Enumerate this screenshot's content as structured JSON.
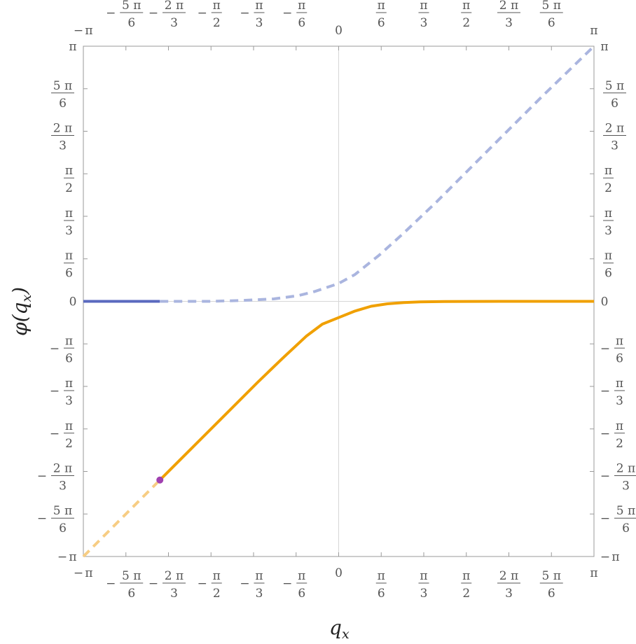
{
  "chart_data": {
    "type": "line",
    "xlabel": "q",
    "xlabel_sub": "x",
    "ylabel_prefix": "φ(q",
    "ylabel_sub": "x",
    "ylabel_suffix": ")",
    "xlim": [
      -3.14159,
      3.14159
    ],
    "ylim": [
      -3.14159,
      3.14159
    ],
    "ticks": [
      {
        "value": -3.14159,
        "num": "π",
        "den": "",
        "neg": true
      },
      {
        "value": -2.61799,
        "num": "5 π",
        "den": "6",
        "neg": true
      },
      {
        "value": -2.0944,
        "num": "2 π",
        "den": "3",
        "neg": true
      },
      {
        "value": -1.5708,
        "num": "π",
        "den": "2",
        "neg": true
      },
      {
        "value": -1.0472,
        "num": "π",
        "den": "3",
        "neg": true
      },
      {
        "value": -0.5236,
        "num": "π",
        "den": "6",
        "neg": true
      },
      {
        "value": 0,
        "num": "0",
        "den": "",
        "neg": false
      },
      {
        "value": 0.5236,
        "num": "π",
        "den": "6",
        "neg": false
      },
      {
        "value": 1.0472,
        "num": "π",
        "den": "3",
        "neg": false
      },
      {
        "value": 1.5708,
        "num": "π",
        "den": "2",
        "neg": false
      },
      {
        "value": 2.0944,
        "num": "2 π",
        "den": "3",
        "neg": false
      },
      {
        "value": 2.61799,
        "num": "5 π",
        "den": "6",
        "neg": false
      },
      {
        "value": 3.14159,
        "num": "π",
        "den": "",
        "neg": false
      }
    ],
    "series": [
      {
        "style": "solid",
        "color": "#5a6abf",
        "x": [
          -3.14159,
          -2.2
        ],
        "y": [
          0,
          0
        ]
      },
      {
        "style": "dashed",
        "color": "#aab5df",
        "x": [
          -2.2,
          -1.6,
          -1.2,
          -0.8,
          -0.5,
          -0.3,
          -0.15,
          0,
          0.2,
          0.5,
          0.8,
          1.2,
          1.6,
          2.0,
          2.5,
          3.14159
        ],
        "y": [
          0,
          0,
          0.01,
          0.03,
          0.07,
          0.12,
          0.17,
          0.22,
          0.33,
          0.57,
          0.84,
          1.22,
          1.62,
          2.02,
          2.52,
          3.14159
        ]
      },
      {
        "style": "solid",
        "color": "#f0a000",
        "x": [
          -2.2,
          -1.8,
          -1.4,
          -1.0,
          -0.7,
          -0.4,
          -0.2,
          0,
          0.2,
          0.4,
          0.6,
          0.8,
          1.0,
          1.3,
          1.6,
          2.0,
          3.14159
        ],
        "y": [
          -2.2,
          -1.8,
          -1.4,
          -1.0,
          -0.71,
          -0.43,
          -0.28,
          -0.2,
          -0.12,
          -0.06,
          -0.03,
          -0.015,
          -0.007,
          -0.003,
          -0.001,
          0,
          0
        ]
      },
      {
        "style": "dashed",
        "color": "#f7cd84",
        "x": [
          -3.14159,
          -2.2
        ],
        "y": [
          -3.14159,
          -2.2
        ]
      }
    ],
    "points": [
      {
        "x": -2.2,
        "y": -2.2,
        "color": "#a040b0"
      }
    ]
  }
}
